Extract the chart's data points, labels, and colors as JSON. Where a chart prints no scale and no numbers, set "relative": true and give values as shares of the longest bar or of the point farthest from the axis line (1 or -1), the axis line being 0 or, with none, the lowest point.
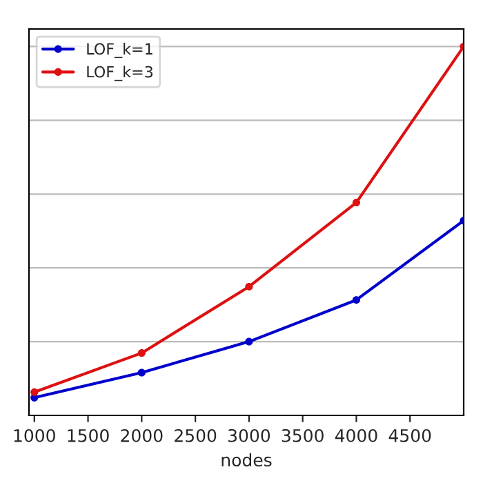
{
  "chart_data": {
    "type": "line",
    "xlabel": "nodes",
    "relative": true,
    "x": [
      1000,
      2000,
      3000,
      4000,
      5000
    ],
    "xlim": [
      950,
      5000
    ],
    "xticks": [
      1000,
      1500,
      2000,
      2500,
      3000,
      3500,
      4000,
      4500
    ],
    "series": [
      {
        "name": "LOF_k=1",
        "color": "#0000cc",
        "values": [
          0.048,
          0.116,
          0.2,
          0.313,
          0.528
        ]
      },
      {
        "name": "LOF_k=3",
        "color": "#dd1111",
        "values": [
          0.063,
          0.169,
          0.349,
          0.577,
          1
        ]
      }
    ],
    "grid": "y",
    "legend": "top left",
    "marker": "circle",
    "line_style": "solid",
    "tick_labels": "x"
  }
}
